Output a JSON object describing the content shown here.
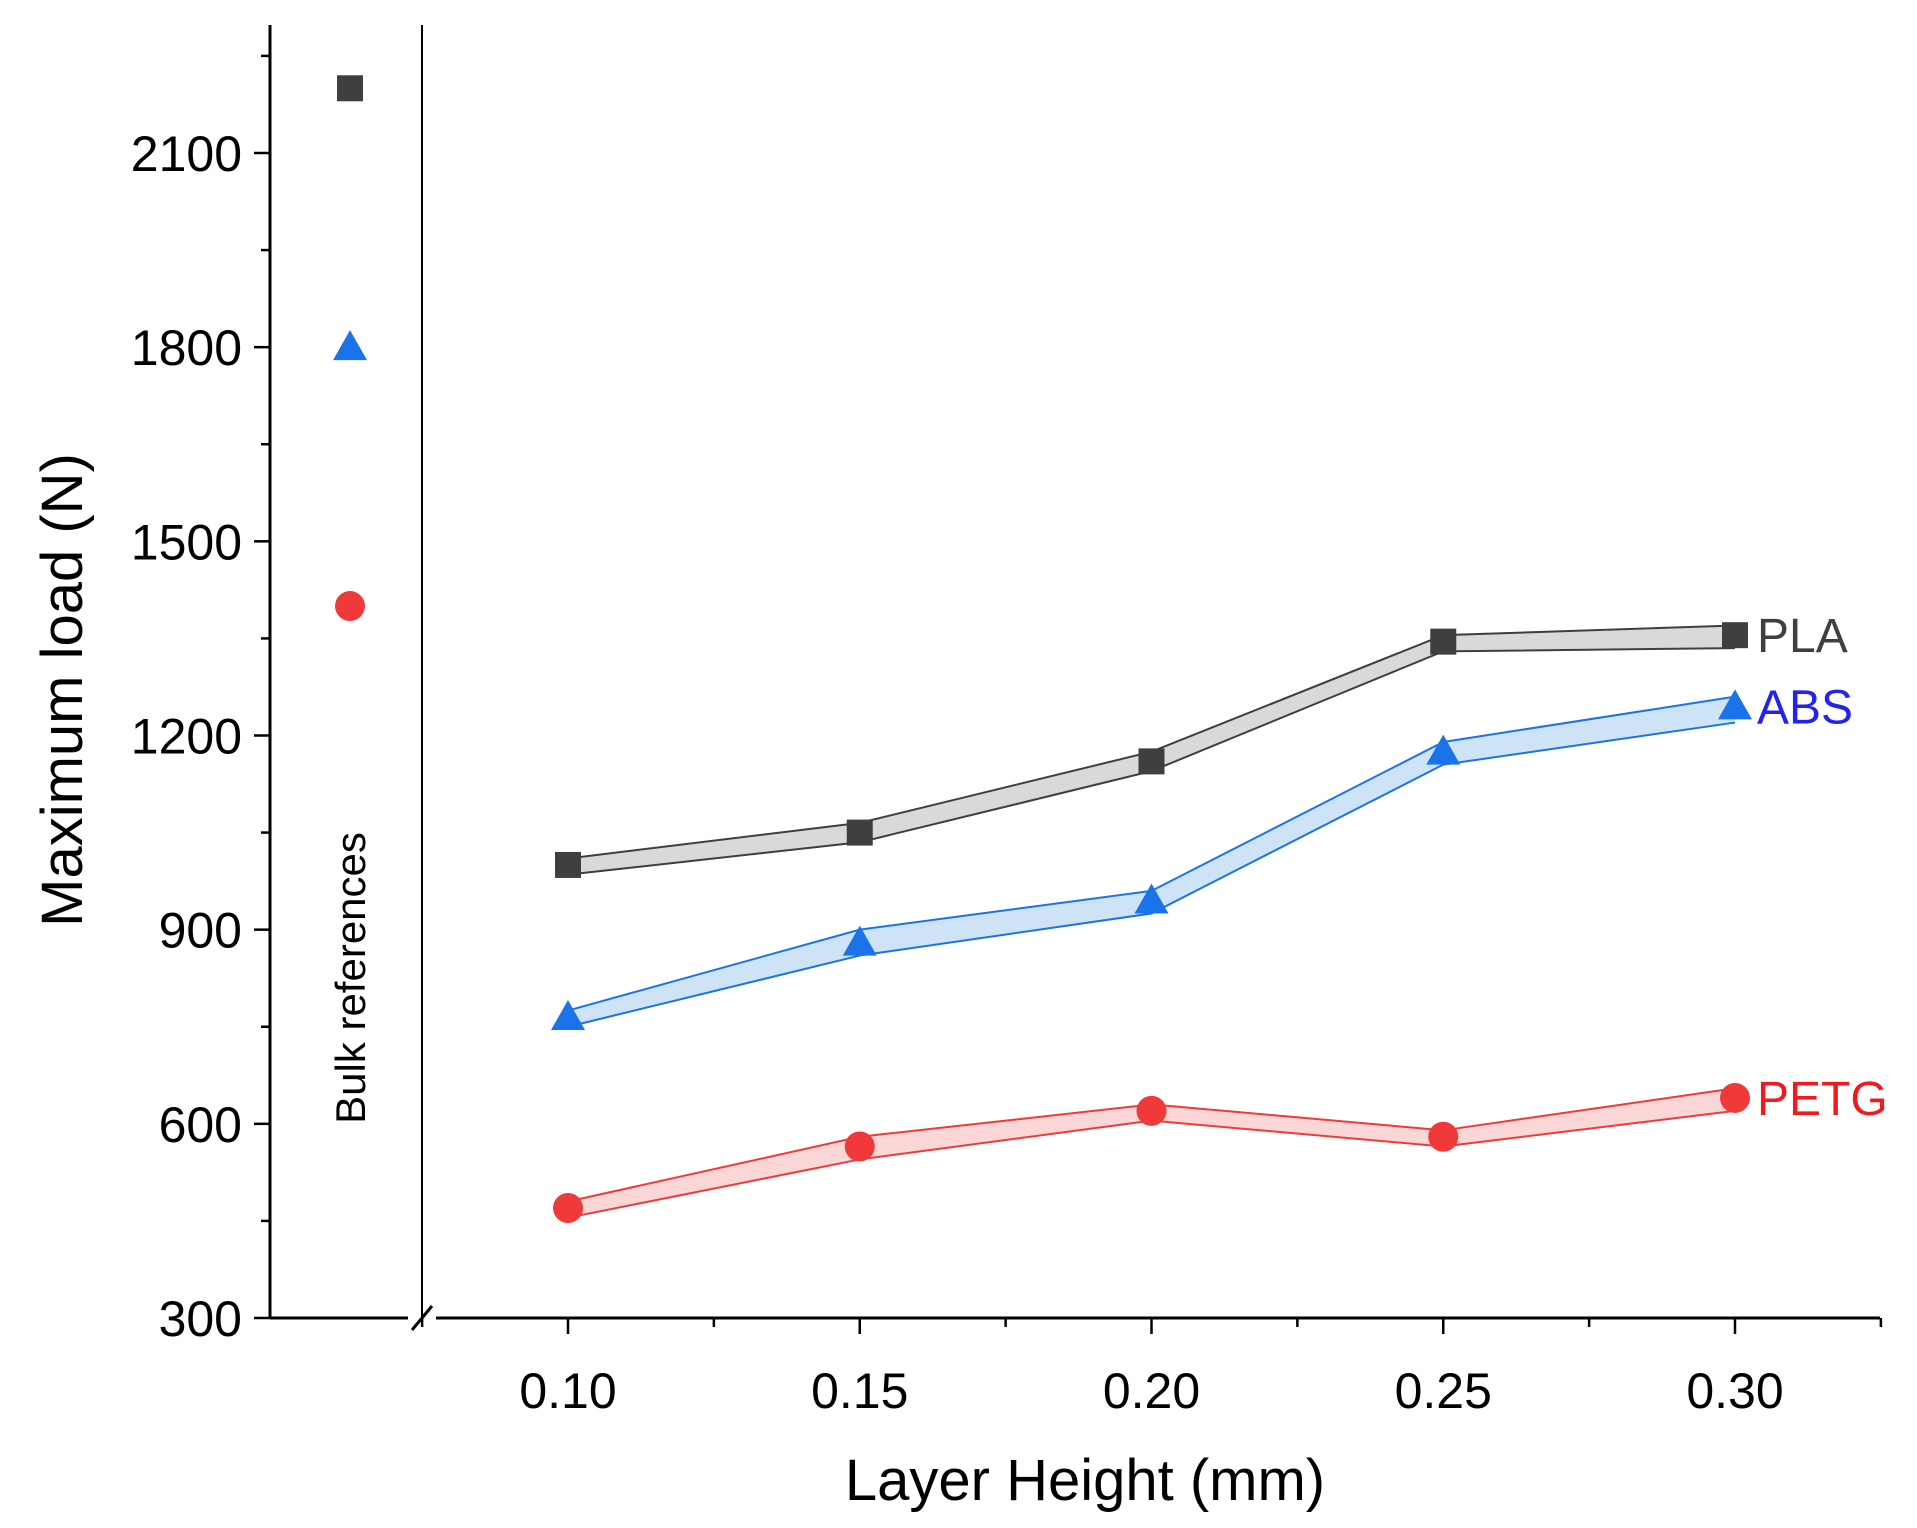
{
  "chart_data": {
    "type": "line",
    "title": "",
    "xlabel": "Layer Height (mm)",
    "ylabel": "Maximum load (N)",
    "x": [
      0.1,
      0.15,
      0.2,
      0.25,
      0.3
    ],
    "x_tick_labels": [
      "0.10",
      "0.15",
      "0.20",
      "0.25",
      "0.30"
    ],
    "xlim": [
      0.05,
      0.325
    ],
    "ylim": [
      300,
      2300
    ],
    "y_ticks": [
      300,
      600,
      900,
      1200,
      1500,
      1800,
      2100
    ],
    "grid": false,
    "axis_break": "x",
    "bulk_label": "Bulk references",
    "series": [
      {
        "name": "PLA",
        "color": "#3f3f3f",
        "band_color": "#d9d9d9",
        "marker": "square",
        "values": [
          1000,
          1050,
          1160,
          1345,
          1355
        ],
        "band_upper": [
          1010,
          1065,
          1175,
          1355,
          1370
        ],
        "band_lower": [
          985,
          1035,
          1145,
          1330,
          1335
        ],
        "bulk_value": 2200
      },
      {
        "name": "ABS",
        "color": "#1a73e8",
        "label_color": "#2323ee",
        "band_color": "#cfe3f7",
        "marker": "triangle",
        "values": [
          765,
          880,
          945,
          1175,
          1245
        ],
        "band_upper": [
          775,
          900,
          960,
          1190,
          1260
        ],
        "band_lower": [
          750,
          860,
          925,
          1155,
          1220
        ],
        "bulk_value": 1800
      },
      {
        "name": "PETG",
        "color": "#f03a3a",
        "label_color": "#ee1c1c",
        "band_color": "#fad6d6",
        "marker": "circle",
        "values": [
          470,
          565,
          620,
          580,
          640
        ],
        "band_upper": [
          480,
          580,
          630,
          590,
          655
        ],
        "band_lower": [
          455,
          545,
          605,
          565,
          620
        ],
        "bulk_value": 1400
      }
    ]
  }
}
